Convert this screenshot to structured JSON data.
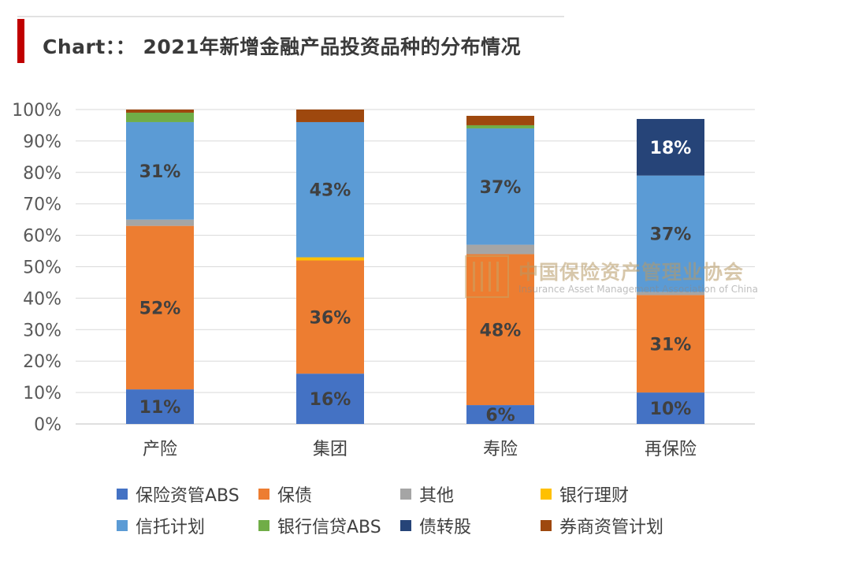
{
  "header": {
    "title": "Chart：：  2021年新增金融产品投资品种的分布情况"
  },
  "watermark": {
    "cn": "中国保险资产管理业协会",
    "en": "Insurance Asset Management Association of China"
  },
  "chart_data": {
    "type": "bar",
    "stacked": true,
    "title": "2021年新增金融产品投资品种的分布情况",
    "categories": [
      "产险",
      "集团",
      "寿险",
      "再保险"
    ],
    "y_ticks": [
      "0%",
      "10%",
      "20%",
      "30%",
      "40%",
      "50%",
      "60%",
      "70%",
      "80%",
      "90%",
      "100%"
    ],
    "ylim": [
      0,
      100
    ],
    "grid": true,
    "legend_position": "bottom",
    "series": [
      {
        "name": "保险资管ABS",
        "color": "#4472c4",
        "values": [
          11,
          16,
          6,
          10
        ],
        "labels": [
          "11%",
          "16%",
          "6%",
          "10%"
        ]
      },
      {
        "name": "保债",
        "color": "#ed7d31",
        "values": [
          52,
          36,
          48,
          31
        ],
        "labels": [
          "52%",
          "36%",
          "48%",
          "31%"
        ]
      },
      {
        "name": "其他",
        "color": "#a5a5a5",
        "values": [
          2,
          0,
          3,
          1
        ],
        "labels": [
          "",
          "",
          "",
          ""
        ]
      },
      {
        "name": "银行理财",
        "color": "#ffc000",
        "values": [
          0,
          1,
          0,
          0
        ],
        "labels": [
          "",
          "",
          "",
          ""
        ]
      },
      {
        "name": "信托计划",
        "color": "#5b9bd5",
        "values": [
          31,
          43,
          37,
          37
        ],
        "labels": [
          "31%",
          "43%",
          "37%",
          "37%"
        ]
      },
      {
        "name": "银行信贷ABS",
        "color": "#70ad47",
        "values": [
          3,
          0,
          1,
          0
        ],
        "labels": [
          "",
          "",
          "",
          ""
        ]
      },
      {
        "name": "债转股",
        "color": "#264478",
        "values": [
          0,
          0,
          0,
          18
        ],
        "labels": [
          "",
          "",
          "",
          "18%"
        ]
      },
      {
        "name": "券商资管计划",
        "color": "#9e480e",
        "values": [
          1,
          4,
          3,
          0
        ],
        "labels": [
          "",
          "",
          "",
          ""
        ]
      }
    ]
  }
}
